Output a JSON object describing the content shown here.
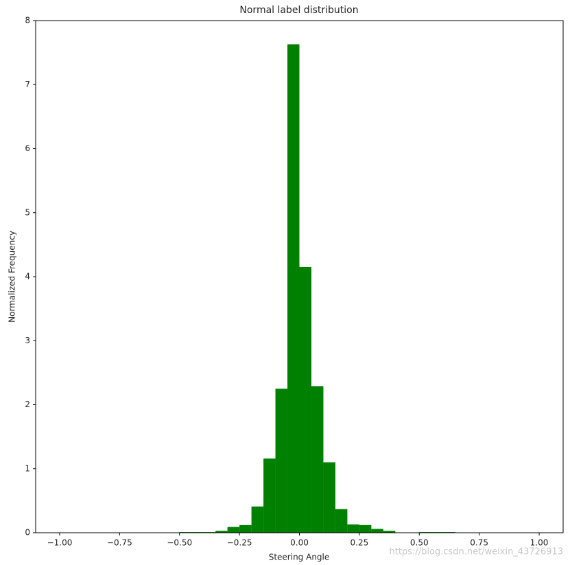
{
  "chart_data": {
    "type": "histogram",
    "title": "Normal label distribution",
    "x_label": "Steering Angle",
    "y_label": "Normalized Frequency",
    "color": "#008000",
    "bins": [
      -0.5,
      -0.45,
      -0.4,
      -0.35,
      -0.3,
      -0.25,
      -0.2,
      -0.15,
      -0.1,
      -0.05,
      0,
      0.05,
      0.1,
      0.15,
      0.2,
      0.25,
      0.3,
      0.35,
      0.4,
      0.45,
      0.5,
      0.55,
      0.6,
      0.65
    ],
    "counts": [
      0.01,
      0.01,
      0.01,
      0.03,
      0.09,
      0.12,
      0.41,
      1.16,
      2.25,
      7.63,
      4.15,
      2.29,
      1.1,
      0.37,
      0.13,
      0.12,
      0.06,
      0.03,
      0,
      0,
      0.01,
      0.01,
      0.01
    ],
    "xlim": [
      -1.1,
      1.1
    ],
    "ylim": [
      0,
      8
    ],
    "xticks": [
      {
        "value": -1,
        "label": "−1.00"
      },
      {
        "value": -0.75,
        "label": "−0.75"
      },
      {
        "value": -0.5,
        "label": "−0.50"
      },
      {
        "value": -0.25,
        "label": "−0.25"
      },
      {
        "value": 0,
        "label": "0.00"
      },
      {
        "value": 0.25,
        "label": "0.25"
      },
      {
        "value": 0.5,
        "label": "0.50"
      },
      {
        "value": 0.75,
        "label": "0.75"
      },
      {
        "value": 1,
        "label": "1.00"
      }
    ],
    "yticks": [
      0,
      1,
      2,
      3,
      4,
      5,
      6,
      7,
      8
    ],
    "watermark": "https://blog.csdn.net/weixin_43726913"
  }
}
